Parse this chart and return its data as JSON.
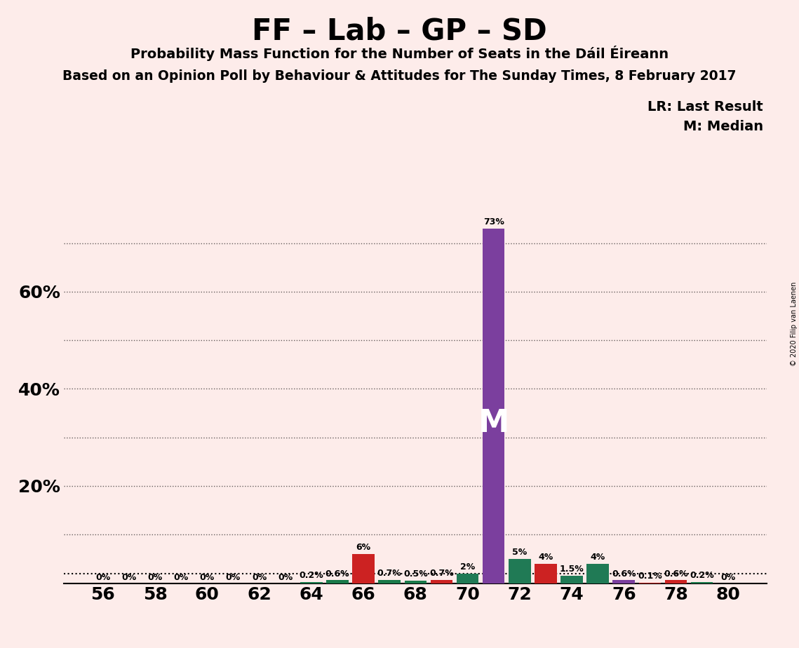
{
  "title": "FF – Lab – GP – SD",
  "subtitle": "Probability Mass Function for the Number of Seats in the Dáil Éireann",
  "subtitle2": "Based on an Opinion Poll by Behaviour & Attitudes for The Sunday Times, 8 February 2017",
  "copyright": "© 2020 Filip van Laenen",
  "lr_label": "LR",
  "median_label": "M",
  "lr_line_value": 0.02,
  "median_seat": 71,
  "background_color": "#FDECEA",
  "seats": [
    56,
    57,
    58,
    59,
    60,
    61,
    62,
    63,
    64,
    65,
    66,
    67,
    68,
    69,
    70,
    71,
    72,
    73,
    74,
    75,
    76,
    77,
    78,
    79,
    80
  ],
  "values": [
    0.0,
    0.0,
    0.0,
    0.0,
    0.0,
    0.0,
    0.0,
    0.0,
    0.002,
    0.006,
    0.06,
    0.007,
    0.005,
    0.007,
    0.02,
    0.73,
    0.05,
    0.04,
    0.015,
    0.04,
    0.006,
    0.001,
    0.006,
    0.002,
    0.0
  ],
  "colors": [
    "#1a7a4a",
    "#1a7a4a",
    "#1a7a4a",
    "#1a7a4a",
    "#1a7a4a",
    "#1a7a4a",
    "#1a7a4a",
    "#1a7a4a",
    "#1a7a4a",
    "#1a7a4a",
    "#CC2222",
    "#1a7a4a",
    "#1a7a4a",
    "#CC2222",
    "#207a55",
    "#7B3F9E",
    "#207a55",
    "#CC2222",
    "#207a55",
    "#207a55",
    "#7B3F9E",
    "#CC2222",
    "#CC2222",
    "#1a7a4a",
    "#1a7a4a"
  ],
  "bar_labels": [
    "0%",
    "0%",
    "0%",
    "0%",
    "0%",
    "0%",
    "0%",
    "0%",
    "0.2%",
    "0.6%",
    "6%",
    "0.7%",
    "0.5%",
    "0.7%",
    "2%",
    "73%",
    "5%",
    "4%",
    "1.5%",
    "4%",
    "0.6%",
    "0.1%",
    "0.6%",
    "0.2%",
    "0%"
  ],
  "ylim": [
    0,
    0.8
  ],
  "yticks": [
    0.2,
    0.4,
    0.6
  ],
  "ytick_labels": [
    "20%",
    "40%",
    "60%"
  ],
  "grid_lines": [
    0.1,
    0.2,
    0.3,
    0.4,
    0.5,
    0.6,
    0.7
  ],
  "xlabel_seats": [
    56,
    58,
    60,
    62,
    64,
    66,
    68,
    70,
    72,
    74,
    76,
    78,
    80
  ]
}
